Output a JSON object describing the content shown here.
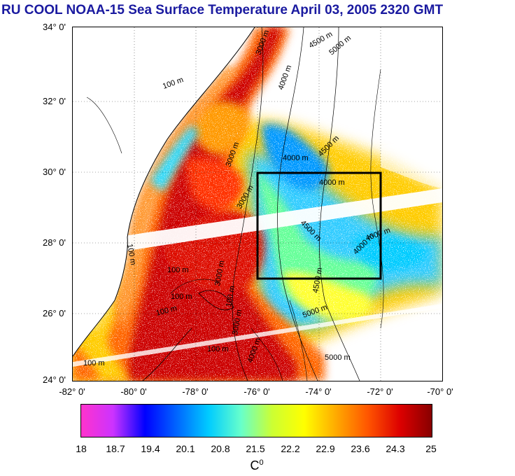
{
  "title": "RU COOL  NOAA-15 Sea Surface Temperature April 03, 2005 2320 GMT",
  "y_ticks": [
    "34° 0'",
    "32° 0'",
    "30° 0'",
    "28° 0'",
    "26° 0'",
    "24° 0'"
  ],
  "x_ticks": [
    "-82° 0'",
    "-80° 0'",
    "-78° 0'",
    "-76° 0'",
    "-74° 0'",
    "-72° 0'",
    "-70° 0'"
  ],
  "depth_labels": [
    "3000 m",
    "4000 m",
    "4500 m",
    "100 m",
    "4000 m",
    "3000 m",
    "4000 m",
    "4500 m",
    "5000 m",
    "4000 m",
    "100 m",
    "3000 m",
    "5000 m",
    "4500 m",
    "4000 m",
    "4500 m",
    "100 m",
    "100 m",
    "100 m",
    "5000 m",
    "3000 m",
    "100 m",
    "100 m",
    "100 m",
    "3000 m",
    "4000 m"
  ],
  "colorbar": {
    "ticks": [
      "18",
      "18.7",
      "19.4",
      "20.1",
      "20.8",
      "21.5",
      "22.2",
      "22.9",
      "23.6",
      "24.3",
      "25"
    ],
    "unit": "C",
    "unit_sup": "0",
    "colors": [
      "#ff33cc",
      "#cc33ff",
      "#0000ff",
      "#0066ff",
      "#00ccff",
      "#66ffcc",
      "#ccff33",
      "#ffff00",
      "#ffaa00",
      "#ff5500",
      "#dd0000",
      "#880000"
    ]
  },
  "box": {
    "lon": [
      -76,
      -72
    ],
    "lat": [
      27,
      30
    ]
  }
}
